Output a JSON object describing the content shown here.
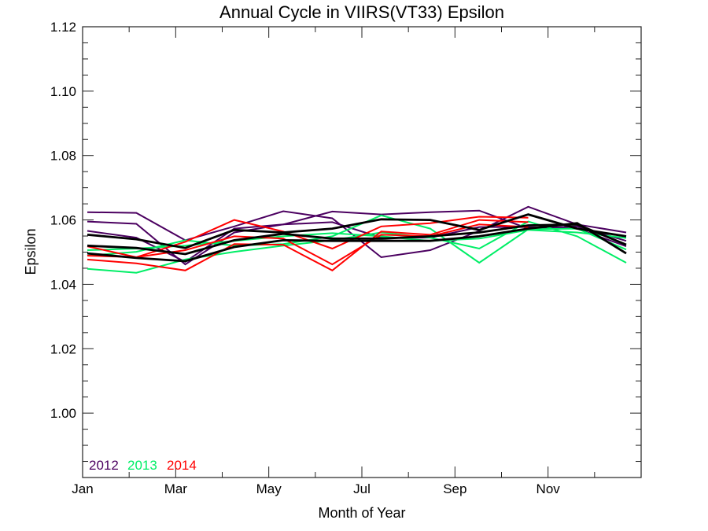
{
  "chart_data": {
    "type": "line",
    "title": "Annual Cycle in VIIRS(VT33) Epsilon",
    "xlabel": "Month of Year",
    "ylabel": "Epsilon",
    "xlim": [
      1,
      13
    ],
    "ylim": [
      0.98,
      1.12
    ],
    "x_tick_labels": [
      "Jan",
      "Mar",
      "May",
      "Jul",
      "Sep",
      "Nov"
    ],
    "x_tick_values": [
      1,
      3,
      5,
      7,
      9,
      11
    ],
    "x_minor_tick_values": [
      2,
      4,
      6,
      8,
      10,
      12
    ],
    "y_tick_labels": [
      "1.00",
      "1.02",
      "1.04",
      "1.06",
      "1.08",
      "1.10",
      "1.12"
    ],
    "y_tick_values": [
      1.0,
      1.02,
      1.04,
      1.06,
      1.08,
      1.1,
      1.12
    ],
    "y_minor_step": 0.005,
    "grid": false,
    "legend": {
      "placement": "bottom-left",
      "entries": [
        {
          "label": "2012",
          "color": "#4b0060"
        },
        {
          "label": "2013",
          "color": "#00ee66"
        },
        {
          "label": "2014",
          "color": "#ff0000"
        }
      ]
    },
    "x": [
      1,
      2,
      3,
      4,
      5,
      6,
      7,
      8,
      9,
      10,
      11,
      12
    ],
    "series": [
      {
        "name": "2012 a",
        "group": "2012",
        "color": "#4b0060",
        "values": [
          1.0624,
          1.0622,
          1.0537,
          1.058,
          1.0627,
          1.0605,
          1.0484,
          1.0506,
          1.0566,
          1.0641,
          1.0586,
          1.0561
        ]
      },
      {
        "name": "2012 b",
        "group": "2012",
        "color": "#4b0060",
        "values": [
          1.0595,
          1.0588,
          1.0462,
          1.0561,
          1.0586,
          1.0626,
          1.0617,
          1.0624,
          1.0629,
          1.0573,
          1.058,
          1.0535
        ]
      },
      {
        "name": "2012 c",
        "group": "2012",
        "color": "#4b0060",
        "values": [
          1.0566,
          1.0545,
          1.047,
          1.0573,
          1.0586,
          1.0593,
          1.0545,
          1.0545,
          1.0578,
          1.0578,
          1.0573,
          1.0518
        ]
      },
      {
        "name": "2013 a",
        "group": "2013",
        "color": "#00ee66",
        "values": [
          1.0489,
          1.0501,
          1.0537,
          1.052,
          1.0525,
          1.0549,
          1.0614,
          1.0573,
          1.0467,
          1.0571,
          1.0573,
          1.0508
        ]
      },
      {
        "name": "2013 b",
        "group": "2013",
        "color": "#00ee66",
        "values": [
          1.0448,
          1.0436,
          1.0477,
          1.0501,
          1.052,
          1.0537,
          1.0561,
          1.0545,
          1.0511,
          1.0595,
          1.0549,
          1.0467
        ]
      },
      {
        "name": "2013 c",
        "group": "2013",
        "color": "#00ee66",
        "values": [
          1.0506,
          1.0511,
          1.052,
          1.0535,
          1.0549,
          1.0559,
          1.0549,
          1.0535,
          1.0542,
          1.0569,
          1.0561,
          1.0544
        ]
      },
      {
        "name": "2014 a",
        "group": "2014",
        "color": "#ff0000",
        "values": [
          1.0518,
          1.0484,
          1.0532,
          1.06,
          1.0564,
          1.0511,
          1.058,
          1.059,
          1.061,
          1.0607
        ]
      },
      {
        "name": "2014 b",
        "group": "2014",
        "color": "#ff0000",
        "values": [
          1.0477,
          1.0465,
          1.0443,
          1.0525,
          1.0523,
          1.0443,
          1.0564,
          1.0554,
          1.06,
          1.0593
        ]
      },
      {
        "name": "2014 c",
        "group": "2014",
        "color": "#ff0000",
        "values": [
          1.0489,
          1.0484,
          1.0506,
          1.0549,
          1.0542,
          1.0462,
          1.0554,
          1.0549,
          1.0586,
          1.0578
        ]
      },
      {
        "name": "mean a",
        "group": "mean",
        "color": "#000000",
        "values": [
          1.0554,
          1.054,
          1.0513,
          1.0569,
          1.0561,
          1.0573,
          1.0602,
          1.06,
          1.0569,
          1.0617,
          1.0573,
          1.0549
        ]
      },
      {
        "name": "mean b",
        "group": "mean",
        "color": "#000000",
        "values": [
          1.052,
          1.0513,
          1.0494,
          1.0537,
          1.0557,
          1.0542,
          1.0542,
          1.0549,
          1.0561,
          1.0583,
          1.0586,
          1.0523
        ]
      },
      {
        "name": "mean c",
        "group": "mean",
        "color": "#000000",
        "values": [
          1.0496,
          1.0482,
          1.0472,
          1.0516,
          1.0537,
          1.0535,
          1.0535,
          1.0535,
          1.0549,
          1.0573,
          1.059,
          1.0496
        ]
      }
    ]
  }
}
